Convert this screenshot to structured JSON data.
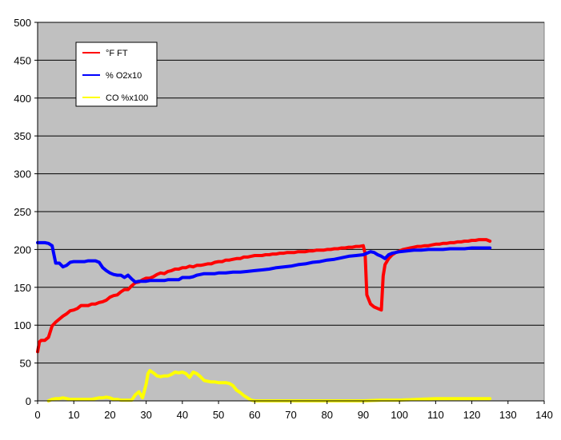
{
  "chart_data": {
    "type": "line",
    "title": "",
    "xlabel": "",
    "ylabel": "",
    "xlim": [
      0,
      140
    ],
    "ylim": [
      0,
      500
    ],
    "x_ticks": [
      0,
      10,
      20,
      30,
      40,
      50,
      60,
      70,
      80,
      90,
      100,
      110,
      120,
      130,
      140
    ],
    "y_ticks": [
      0,
      50,
      100,
      150,
      200,
      250,
      300,
      350,
      400,
      450,
      500
    ],
    "grid": "horizontal",
    "plot_background": "#c0c0c0",
    "legend_position": "top-left",
    "series": [
      {
        "name": "°F FT",
        "color": "#ff0000",
        "points": [
          [
            0,
            65
          ],
          [
            0.5,
            78
          ],
          [
            1,
            80
          ],
          [
            2,
            80
          ],
          [
            3,
            84
          ],
          [
            4,
            99
          ],
          [
            5,
            104
          ],
          [
            6,
            108
          ],
          [
            7,
            112
          ],
          [
            8,
            115
          ],
          [
            9,
            119
          ],
          [
            10,
            120
          ],
          [
            11,
            122
          ],
          [
            12,
            126
          ],
          [
            13,
            126
          ],
          [
            14,
            126
          ],
          [
            15,
            128
          ],
          [
            16,
            128
          ],
          [
            17,
            130
          ],
          [
            18,
            131
          ],
          [
            19,
            133
          ],
          [
            20,
            137
          ],
          [
            21,
            139
          ],
          [
            22,
            140
          ],
          [
            23,
            144
          ],
          [
            24,
            147
          ],
          [
            25,
            147
          ],
          [
            26,
            152
          ],
          [
            27,
            156
          ],
          [
            28,
            157
          ],
          [
            29,
            160
          ],
          [
            30,
            162
          ],
          [
            31,
            162
          ],
          [
            32,
            164
          ],
          [
            33,
            167
          ],
          [
            34,
            169
          ],
          [
            35,
            168
          ],
          [
            36,
            171
          ],
          [
            37,
            172
          ],
          [
            38,
            174
          ],
          [
            39,
            174
          ],
          [
            40,
            176
          ],
          [
            41,
            176
          ],
          [
            42,
            178
          ],
          [
            43,
            177
          ],
          [
            44,
            179
          ],
          [
            45,
            179
          ],
          [
            46,
            180
          ],
          [
            47,
            181
          ],
          [
            48,
            181
          ],
          [
            49,
            183
          ],
          [
            50,
            184
          ],
          [
            51,
            184
          ],
          [
            52,
            186
          ],
          [
            53,
            186
          ],
          [
            54,
            187
          ],
          [
            55,
            188
          ],
          [
            56,
            188
          ],
          [
            57,
            190
          ],
          [
            58,
            190
          ],
          [
            59,
            191
          ],
          [
            60,
            192
          ],
          [
            61,
            192
          ],
          [
            62,
            192
          ],
          [
            63,
            193
          ],
          [
            64,
            193
          ],
          [
            65,
            194
          ],
          [
            66,
            194
          ],
          [
            67,
            195
          ],
          [
            68,
            195
          ],
          [
            69,
            196
          ],
          [
            70,
            196
          ],
          [
            71,
            196
          ],
          [
            72,
            197
          ],
          [
            73,
            197
          ],
          [
            74,
            197
          ],
          [
            75,
            198
          ],
          [
            76,
            198
          ],
          [
            77,
            199
          ],
          [
            78,
            199
          ],
          [
            79,
            199
          ],
          [
            80,
            200
          ],
          [
            81,
            200
          ],
          [
            82,
            201
          ],
          [
            83,
            201
          ],
          [
            84,
            202
          ],
          [
            85,
            202
          ],
          [
            86,
            203
          ],
          [
            87,
            203
          ],
          [
            88,
            204
          ],
          [
            89,
            204
          ],
          [
            90,
            205
          ],
          [
            90.5,
            195
          ],
          [
            91,
            140
          ],
          [
            92,
            128
          ],
          [
            93,
            124
          ],
          [
            94,
            122
          ],
          [
            95,
            120
          ],
          [
            95.5,
            165
          ],
          [
            96,
            180
          ],
          [
            97,
            188
          ],
          [
            98,
            193
          ],
          [
            99,
            196
          ],
          [
            100,
            198
          ],
          [
            101,
            200
          ],
          [
            102,
            201
          ],
          [
            103,
            202
          ],
          [
            104,
            203
          ],
          [
            105,
            204
          ],
          [
            106,
            204
          ],
          [
            107,
            205
          ],
          [
            108,
            205
          ],
          [
            109,
            206
          ],
          [
            110,
            207
          ],
          [
            111,
            207
          ],
          [
            112,
            208
          ],
          [
            113,
            208
          ],
          [
            114,
            209
          ],
          [
            115,
            209
          ],
          [
            116,
            210
          ],
          [
            117,
            210
          ],
          [
            118,
            211
          ],
          [
            119,
            211
          ],
          [
            120,
            212
          ],
          [
            121,
            212
          ],
          [
            122,
            213
          ],
          [
            123,
            213
          ],
          [
            124,
            213
          ],
          [
            125,
            211
          ]
        ]
      },
      {
        "name": "% O2x10",
        "color": "#0000ff",
        "points": [
          [
            0,
            209
          ],
          [
            1,
            209
          ],
          [
            2,
            209
          ],
          [
            3,
            208
          ],
          [
            4,
            205
          ],
          [
            5,
            182
          ],
          [
            6,
            182
          ],
          [
            7,
            177
          ],
          [
            8,
            179
          ],
          [
            9,
            183
          ],
          [
            10,
            184
          ],
          [
            11,
            184
          ],
          [
            12,
            184
          ],
          [
            13,
            184
          ],
          [
            14,
            185
          ],
          [
            15,
            185
          ],
          [
            16,
            185
          ],
          [
            17,
            183
          ],
          [
            18,
            176
          ],
          [
            19,
            172
          ],
          [
            20,
            169
          ],
          [
            21,
            167
          ],
          [
            22,
            166
          ],
          [
            23,
            166
          ],
          [
            24,
            163
          ],
          [
            25,
            166
          ],
          [
            26,
            161
          ],
          [
            27,
            157
          ],
          [
            28,
            158
          ],
          [
            29,
            158
          ],
          [
            30,
            158
          ],
          [
            31,
            159
          ],
          [
            32,
            159
          ],
          [
            33,
            159
          ],
          [
            34,
            159
          ],
          [
            35,
            159
          ],
          [
            36,
            160
          ],
          [
            37,
            160
          ],
          [
            38,
            160
          ],
          [
            39,
            160
          ],
          [
            40,
            163
          ],
          [
            41,
            163
          ],
          [
            42,
            163
          ],
          [
            43,
            164
          ],
          [
            44,
            166
          ],
          [
            45,
            167
          ],
          [
            46,
            168
          ],
          [
            47,
            168
          ],
          [
            48,
            168
          ],
          [
            49,
            168
          ],
          [
            50,
            169
          ],
          [
            52,
            169
          ],
          [
            54,
            170
          ],
          [
            56,
            170
          ],
          [
            58,
            171
          ],
          [
            60,
            172
          ],
          [
            62,
            173
          ],
          [
            64,
            174
          ],
          [
            66,
            176
          ],
          [
            68,
            177
          ],
          [
            70,
            178
          ],
          [
            72,
            180
          ],
          [
            74,
            181
          ],
          [
            76,
            183
          ],
          [
            78,
            184
          ],
          [
            80,
            186
          ],
          [
            82,
            187
          ],
          [
            84,
            189
          ],
          [
            86,
            191
          ],
          [
            88,
            192
          ],
          [
            90,
            193
          ],
          [
            91,
            195
          ],
          [
            92,
            197
          ],
          [
            93,
            196
          ],
          [
            94,
            193
          ],
          [
            95,
            191
          ],
          [
            96,
            188
          ],
          [
            97,
            193
          ],
          [
            98,
            195
          ],
          [
            99,
            196
          ],
          [
            100,
            197
          ],
          [
            102,
            198
          ],
          [
            104,
            199
          ],
          [
            106,
            199
          ],
          [
            108,
            200
          ],
          [
            110,
            200
          ],
          [
            112,
            200
          ],
          [
            114,
            201
          ],
          [
            116,
            201
          ],
          [
            118,
            201
          ],
          [
            120,
            202
          ],
          [
            122,
            202
          ],
          [
            124,
            202
          ],
          [
            125,
            202
          ]
        ]
      },
      {
        "name": "CO %x100",
        "color": "#ffff00",
        "points": [
          [
            3,
            0
          ],
          [
            4,
            2
          ],
          [
            5,
            3
          ],
          [
            6,
            3
          ],
          [
            7,
            4
          ],
          [
            8,
            3
          ],
          [
            9,
            2
          ],
          [
            10,
            2
          ],
          [
            11,
            2
          ],
          [
            12,
            2
          ],
          [
            13,
            2
          ],
          [
            14,
            2
          ],
          [
            15,
            2
          ],
          [
            16,
            3
          ],
          [
            17,
            4
          ],
          [
            18,
            4
          ],
          [
            19,
            5
          ],
          [
            20,
            4
          ],
          [
            21,
            2
          ],
          [
            22,
            2
          ],
          [
            23,
            1
          ],
          [
            24,
            1
          ],
          [
            25,
            1
          ],
          [
            26,
            1
          ],
          [
            27,
            8
          ],
          [
            28,
            12
          ],
          [
            29,
            4
          ],
          [
            30,
            22
          ],
          [
            30.5,
            36
          ],
          [
            31,
            40
          ],
          [
            32,
            37
          ],
          [
            33,
            33
          ],
          [
            34,
            32
          ],
          [
            35,
            33
          ],
          [
            36,
            33
          ],
          [
            37,
            35
          ],
          [
            38,
            38
          ],
          [
            39,
            37
          ],
          [
            40,
            38
          ],
          [
            41,
            36
          ],
          [
            42,
            31
          ],
          [
            43,
            38
          ],
          [
            44,
            36
          ],
          [
            45,
            32
          ],
          [
            46,
            27
          ],
          [
            47,
            26
          ],
          [
            48,
            25
          ],
          [
            49,
            25
          ],
          [
            50,
            24
          ],
          [
            51,
            24
          ],
          [
            52,
            24
          ],
          [
            53,
            23
          ],
          [
            54,
            20
          ],
          [
            55,
            14
          ],
          [
            56,
            11
          ],
          [
            57,
            7
          ],
          [
            58,
            4
          ],
          [
            59,
            1
          ],
          [
            60,
            0
          ],
          [
            62,
            0
          ],
          [
            65,
            0
          ],
          [
            70,
            0
          ],
          [
            75,
            0
          ],
          [
            80,
            0
          ],
          [
            85,
            0
          ],
          [
            90,
            0
          ],
          [
            95,
            1
          ],
          [
            100,
            1
          ],
          [
            105,
            2
          ],
          [
            110,
            3
          ],
          [
            115,
            3
          ],
          [
            120,
            3
          ],
          [
            125,
            3
          ]
        ]
      }
    ]
  }
}
